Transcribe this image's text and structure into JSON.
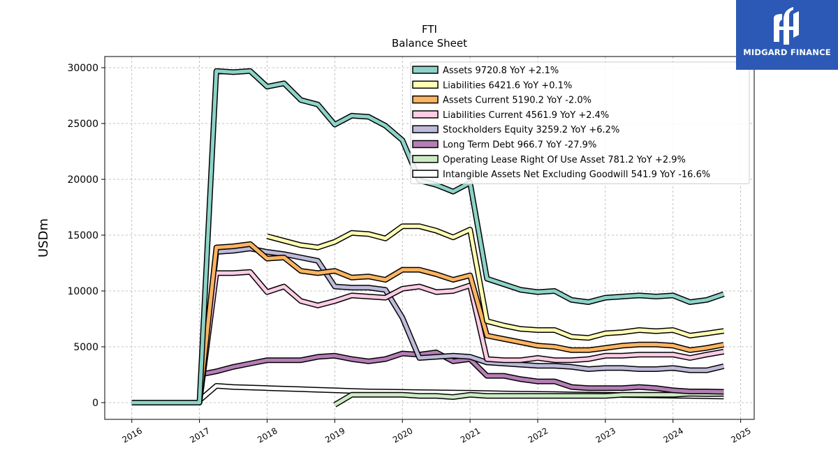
{
  "brand": {
    "name": "MIDGARD FINANCE",
    "logo_icon": "midgard-logo-icon",
    "color": "#2b59b5"
  },
  "chart_data": {
    "type": "line",
    "title": "FTI",
    "subtitle": "Balance  Sheet",
    "ylabel": "USDm",
    "xlabel": "",
    "xlim": [
      2015.6,
      2025.2
    ],
    "ylim": [
      -1500,
      31000
    ],
    "x_ticks": [
      "2016",
      "2017",
      "2018",
      "2019",
      "2020",
      "2021",
      "2022",
      "2023",
      "2024",
      "2025"
    ],
    "y_ticks": [
      "0",
      "5000",
      "10000",
      "15000",
      "20000",
      "25000",
      "30000"
    ],
    "grid": true,
    "legend_position": "top-right",
    "series": [
      {
        "name": "Assets  9720.8 YoY +2.1%",
        "color": "#8dd3c7",
        "x": [
          2016.0,
          2016.25,
          2016.5,
          2016.75,
          2017.0,
          2017.25,
          2017.5,
          2017.75,
          2018.0,
          2018.25,
          2018.5,
          2018.75,
          2019.0,
          2019.25,
          2019.5,
          2019.75,
          2020.0,
          2020.25,
          2020.5,
          2020.75,
          2021.0,
          2021.25,
          2021.5,
          2021.75,
          2022.0,
          2022.25,
          2022.5,
          2022.75,
          2023.0,
          2023.25,
          2023.5,
          2023.75,
          2024.0,
          2024.25,
          2024.5,
          2024.75
        ],
        "y": [
          0,
          0,
          0,
          0,
          0,
          29700,
          29600,
          29700,
          28300,
          28600,
          27100,
          26700,
          24900,
          25700,
          25600,
          24800,
          23500,
          19900,
          19500,
          18900,
          19700,
          11100,
          10600,
          10100,
          9900,
          10000,
          9200,
          9000,
          9400,
          9500,
          9600,
          9500,
          9600,
          9000,
          9200,
          9720.8
        ]
      },
      {
        "name": "Liabilities  6421.6 YoY +0.1%",
        "color": "#ffffb3",
        "x": [
          2018.0,
          2018.25,
          2018.5,
          2018.75,
          2019.0,
          2019.25,
          2019.5,
          2019.75,
          2020.0,
          2020.25,
          2020.5,
          2020.75,
          2021.0,
          2021.25,
          2021.5,
          2021.75,
          2022.0,
          2022.25,
          2022.5,
          2022.75,
          2023.0,
          2023.25,
          2023.5,
          2023.75,
          2024.0,
          2024.25,
          2024.5,
          2024.75
        ],
        "y": [
          14900,
          14500,
          14100,
          13900,
          14400,
          15200,
          15100,
          14700,
          15800,
          15800,
          15400,
          14800,
          15500,
          7300,
          6900,
          6600,
          6500,
          6500,
          5900,
          5800,
          6200,
          6300,
          6500,
          6400,
          6500,
          6000,
          6200,
          6421.6
        ]
      },
      {
        "name": "Assets Current  5190.2 YoY -2.0%",
        "color": "#fdb462",
        "x": [
          2017.0,
          2017.25,
          2017.5,
          2017.75,
          2018.0,
          2018.25,
          2018.5,
          2018.75,
          2019.0,
          2019.25,
          2019.5,
          2019.75,
          2020.0,
          2020.25,
          2020.5,
          2020.75,
          2021.0,
          2021.25,
          2021.5,
          2021.75,
          2022.0,
          2022.25,
          2022.5,
          2022.75,
          2023.0,
          2023.25,
          2023.5,
          2023.75,
          2024.0,
          2024.25,
          2024.5,
          2024.75
        ],
        "y": [
          0,
          13900,
          14000,
          14200,
          12900,
          13000,
          11800,
          11600,
          11800,
          11200,
          11300,
          11000,
          11900,
          11900,
          11500,
          11000,
          11400,
          6000,
          5700,
          5400,
          5100,
          5000,
          4700,
          4700,
          4900,
          5100,
          5200,
          5200,
          5100,
          4700,
          4900,
          5190.2
        ]
      },
      {
        "name": "Liabilities Current  4561.9 YoY +2.4%",
        "color": "#fccde5",
        "x": [
          2017.0,
          2017.25,
          2017.5,
          2017.75,
          2018.0,
          2018.25,
          2018.5,
          2018.75,
          2019.0,
          2019.25,
          2019.5,
          2019.75,
          2020.0,
          2020.25,
          2020.5,
          2020.75,
          2021.0,
          2021.25,
          2021.5,
          2021.75,
          2022.0,
          2022.25,
          2022.5,
          2022.75,
          2023.0,
          2023.25,
          2023.5,
          2023.75,
          2024.0,
          2024.25,
          2024.5,
          2024.75
        ],
        "y": [
          0,
          11600,
          11600,
          11700,
          9900,
          10400,
          9100,
          8700,
          9100,
          9600,
          9500,
          9400,
          10200,
          10400,
          9900,
          10000,
          10500,
          3900,
          3800,
          3800,
          4000,
          3800,
          3800,
          3900,
          4200,
          4200,
          4300,
          4300,
          4300,
          4000,
          4300,
          4561.9
        ]
      },
      {
        "name": "Stockholders Equity  3259.2 YoY +6.2%",
        "color": "#bebada",
        "x": [
          2016.0,
          2016.25,
          2016.5,
          2016.75,
          2017.0,
          2017.25,
          2017.5,
          2017.75,
          2018.0,
          2018.25,
          2018.5,
          2018.75,
          2019.0,
          2019.25,
          2019.5,
          2019.75,
          2020.0,
          2020.25,
          2020.5,
          2020.75,
          2021.0,
          2021.25,
          2021.5,
          2021.75,
          2022.0,
          2022.25,
          2022.5,
          2022.75,
          2023.0,
          2023.25,
          2023.5,
          2023.75,
          2024.0,
          2024.25,
          2024.5,
          2024.75
        ],
        "y": [
          0,
          0,
          0,
          0,
          0,
          13500,
          13600,
          13800,
          13500,
          13300,
          13000,
          12700,
          10400,
          10300,
          10300,
          10100,
          7600,
          4000,
          4100,
          4200,
          4100,
          3600,
          3500,
          3400,
          3300,
          3300,
          3200,
          3000,
          3100,
          3100,
          3000,
          3000,
          3100,
          2900,
          2900,
          3259.2
        ]
      },
      {
        "name": "Long Term Debt  966.7 YoY -27.9%",
        "color": "#b57eb5",
        "x": [
          2017.0,
          2017.25,
          2017.5,
          2017.75,
          2018.0,
          2018.25,
          2018.5,
          2018.75,
          2019.0,
          2019.25,
          2019.5,
          2019.75,
          2020.0,
          2020.25,
          2020.5,
          2020.75,
          2021.0,
          2021.25,
          2021.5,
          2021.75,
          2022.0,
          2022.25,
          2022.5,
          2022.75,
          2023.0,
          2023.25,
          2023.5,
          2023.75,
          2024.0,
          2024.25,
          2024.5,
          2024.75
        ],
        "y": [
          2500,
          2800,
          3200,
          3500,
          3800,
          3800,
          3800,
          4100,
          4200,
          3900,
          3700,
          3900,
          4400,
          4300,
          4500,
          3700,
          3900,
          2400,
          2400,
          2100,
          1900,
          1900,
          1400,
          1300,
          1300,
          1300,
          1400,
          1300,
          1100,
          1000,
          1000,
          966.7
        ]
      },
      {
        "name": "Operating Lease Right Of Use Asset  781.2 YoY +2.9%",
        "color": "#ccebc5",
        "x": [
          2019.0,
          2019.25,
          2019.5,
          2019.75,
          2020.0,
          2020.25,
          2020.5,
          2020.75,
          2021.0,
          2021.25,
          2021.5,
          2021.75,
          2022.0,
          2022.25,
          2022.5,
          2022.75,
          2023.0,
          2023.25,
          2023.5,
          2023.75,
          2024.0,
          2024.25,
          2024.5,
          2024.75
        ],
        "y": [
          -200,
          700,
          700,
          700,
          700,
          600,
          600,
          500,
          700,
          600,
          600,
          600,
          600,
          600,
          600,
          600,
          600,
          700,
          700,
          700,
          700,
          800,
          760,
          781.2
        ]
      },
      {
        "name": "Intangible Assets Net Excluding Goodwill  541.9 YoY -16.6%",
        "color": "#ffffff",
        "x": [
          2017.0,
          2017.25,
          2017.5,
          2017.75,
          2018.0,
          2018.25,
          2018.5,
          2018.75,
          2019.0,
          2019.25,
          2019.5,
          2019.75,
          2020.0,
          2020.25,
          2020.5,
          2020.75,
          2021.0,
          2021.25,
          2021.5,
          2021.75,
          2022.0,
          2022.25,
          2022.5,
          2022.75,
          2023.0,
          2023.25,
          2023.5,
          2023.75,
          2024.0,
          2024.25,
          2024.5,
          2024.75
        ],
        "y": [
          200,
          1500,
          1400,
          1350,
          1300,
          1250,
          1200,
          1150,
          1100,
          1050,
          1000,
          980,
          960,
          940,
          920,
          900,
          880,
          850,
          820,
          800,
          780,
          760,
          740,
          720,
          700,
          680,
          660,
          640,
          620,
          600,
          570,
          541.9
        ]
      }
    ]
  }
}
